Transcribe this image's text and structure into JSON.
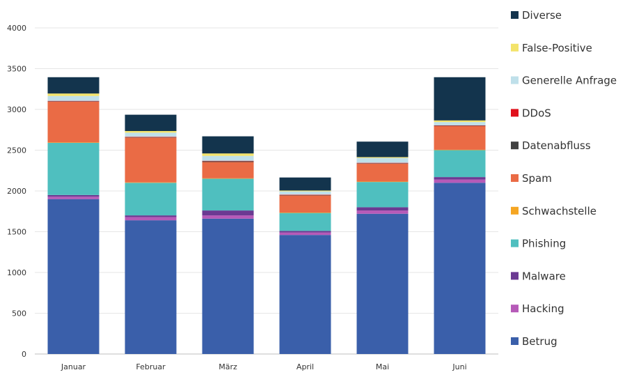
{
  "chart_data": {
    "type": "bar",
    "stacked": true,
    "categories": [
      "Januar",
      "Februar",
      "März",
      "April",
      "Mai",
      "Juni"
    ],
    "series": [
      {
        "name": "Betrug",
        "color": "#3a5faa",
        "values": [
          1900,
          1640,
          1660,
          1460,
          1720,
          2100
        ]
      },
      {
        "name": "Hacking",
        "color": "#b65ab8",
        "values": [
          30,
          40,
          40,
          30,
          40,
          40
        ]
      },
      {
        "name": "Malware",
        "color": "#6b3a92",
        "values": [
          20,
          20,
          60,
          20,
          40,
          30
        ]
      },
      {
        "name": "Phishing",
        "color": "#4fbfbf",
        "values": [
          640,
          400,
          390,
          220,
          310,
          330
        ]
      },
      {
        "name": "Schwachstelle",
        "color": "#f5a623",
        "values": [
          5,
          5,
          5,
          5,
          5,
          5
        ]
      },
      {
        "name": "Spam",
        "color": "#ea6b45",
        "values": [
          500,
          550,
          200,
          210,
          220,
          290
        ]
      },
      {
        "name": "Datenabfluss",
        "color": "#404040",
        "values": [
          5,
          5,
          10,
          5,
          5,
          5
        ]
      },
      {
        "name": "DDoS",
        "color": "#e0101c",
        "values": [
          5,
          5,
          5,
          5,
          5,
          5
        ]
      },
      {
        "name": "Generelle Anfrage",
        "color": "#bfe0ea",
        "values": [
          60,
          50,
          60,
          40,
          60,
          40
        ]
      },
      {
        "name": "False-Positive",
        "color": "#f3e36a",
        "values": [
          30,
          20,
          30,
          10,
          10,
          20
        ]
      },
      {
        "name": "Diverse",
        "color": "#13344d",
        "values": [
          200,
          200,
          210,
          160,
          190,
          530
        ]
      }
    ],
    "ylim": [
      0,
      4000
    ],
    "yticks": [
      0,
      500,
      1000,
      1500,
      2000,
      2500,
      3000,
      3500,
      4000
    ],
    "grid": true,
    "legend_position": "right",
    "legend_order": [
      "Diverse",
      "False-Positive",
      "Generelle Anfrage",
      "DDoS",
      "Datenabfluss",
      "Spam",
      "Schwachstelle",
      "Phishing",
      "Malware",
      "Hacking",
      "Betrug"
    ]
  }
}
